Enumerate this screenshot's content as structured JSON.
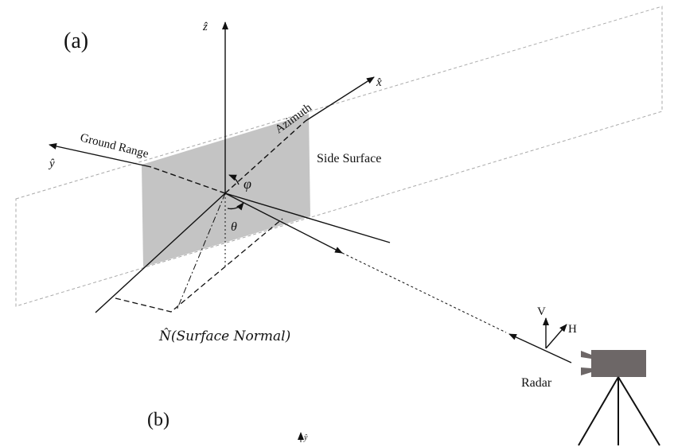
{
  "labels": {
    "panel_a": "(a)",
    "z_axis": "ẑ",
    "x_axis": "x̂",
    "y_axis": "ŷ",
    "azimuth": "Azimuth",
    "ground_range": "Ground Range",
    "side_surface": "Side Surface",
    "phi": "φ",
    "theta": "θ",
    "normal": "N̂(Surface Normal)",
    "v": "V",
    "h": "H",
    "radar": "Radar",
    "panel_b": "(b)",
    "y_small": "ŷ"
  }
}
